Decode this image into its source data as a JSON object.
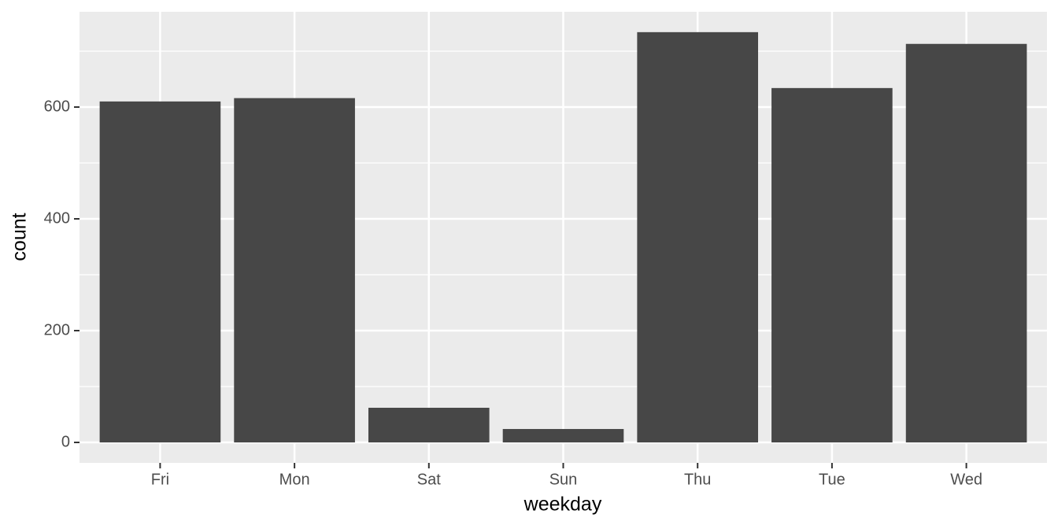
{
  "chart_data": {
    "type": "bar",
    "x_label": "weekday",
    "y_label": "count",
    "categories": [
      "Fri",
      "Mon",
      "Sat",
      "Sun",
      "Thu",
      "Tue",
      "Wed"
    ],
    "values": [
      610,
      616,
      62,
      24,
      734,
      634,
      713
    ],
    "color": "#474747",
    "ylim": [
      -36.6,
      770.4
    ],
    "yticks": [
      0,
      200,
      400,
      600
    ],
    "minor_yticks": [
      100,
      300,
      500,
      700
    ],
    "grid": true
  }
}
